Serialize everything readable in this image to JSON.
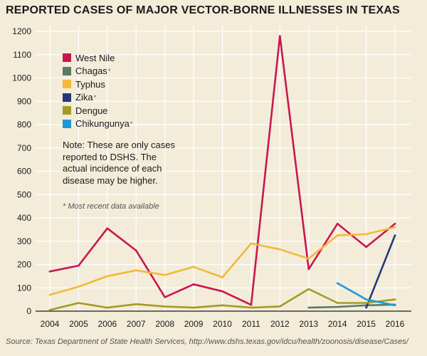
{
  "title": "REPORTED CASES OF MAJOR VECTOR-BORNE ILLNESSES IN TEXAS",
  "note": "Note: These are only cases reported to DSHS. The actual incidence of each disease may be higher.",
  "footnote": "* Most recent data available",
  "source": "Source: Texas Department of State Health Services, http://www.dshs.texas.gov/idcu/health/zoonosis/disease/Cases/",
  "chart_data": {
    "type": "line",
    "title": "REPORTED CASES OF MAJOR VECTOR-BORNE ILLNESSES IN TEXAS",
    "xlabel": "",
    "ylabel": "",
    "x": [
      "2004",
      "2005",
      "2006",
      "2007",
      "2008",
      "2009",
      "2010",
      "2011",
      "2012",
      "2013",
      "2014",
      "2015",
      "2016"
    ],
    "ylim": [
      0,
      1200
    ],
    "yticks": [
      0,
      100,
      200,
      300,
      400,
      500,
      600,
      700,
      800,
      900,
      1000,
      1100,
      1200
    ],
    "grid": true,
    "legend_position": "top-left",
    "series": [
      {
        "name": "West Nile",
        "starred": false,
        "color": "#c8174f",
        "values": [
          170,
          195,
          355,
          260,
          60,
          115,
          85,
          27,
          1180,
          180,
          375,
          275,
          375
        ]
      },
      {
        "name": "Chagas",
        "starred": true,
        "color": "#5c7a64",
        "values": [
          null,
          null,
          null,
          null,
          null,
          null,
          null,
          null,
          null,
          15,
          18,
          25,
          28
        ]
      },
      {
        "name": "Typhus",
        "starred": false,
        "color": "#f2b93b",
        "values": [
          70,
          105,
          150,
          175,
          155,
          190,
          145,
          290,
          265,
          225,
          325,
          330,
          360
        ]
      },
      {
        "name": "Zika",
        "starred": true,
        "color": "#26387a",
        "values": [
          null,
          null,
          null,
          null,
          null,
          null,
          null,
          null,
          null,
          null,
          null,
          15,
          325
        ]
      },
      {
        "name": "Dengue",
        "starred": false,
        "color": "#a39b25",
        "values": [
          5,
          35,
          15,
          30,
          20,
          15,
          25,
          15,
          20,
          95,
          35,
          35,
          50
        ]
      },
      {
        "name": "Chikungunya",
        "starred": true,
        "color": "#1b9ad6",
        "values": [
          null,
          null,
          null,
          null,
          null,
          null,
          null,
          null,
          null,
          null,
          120,
          50,
          25
        ]
      }
    ]
  }
}
